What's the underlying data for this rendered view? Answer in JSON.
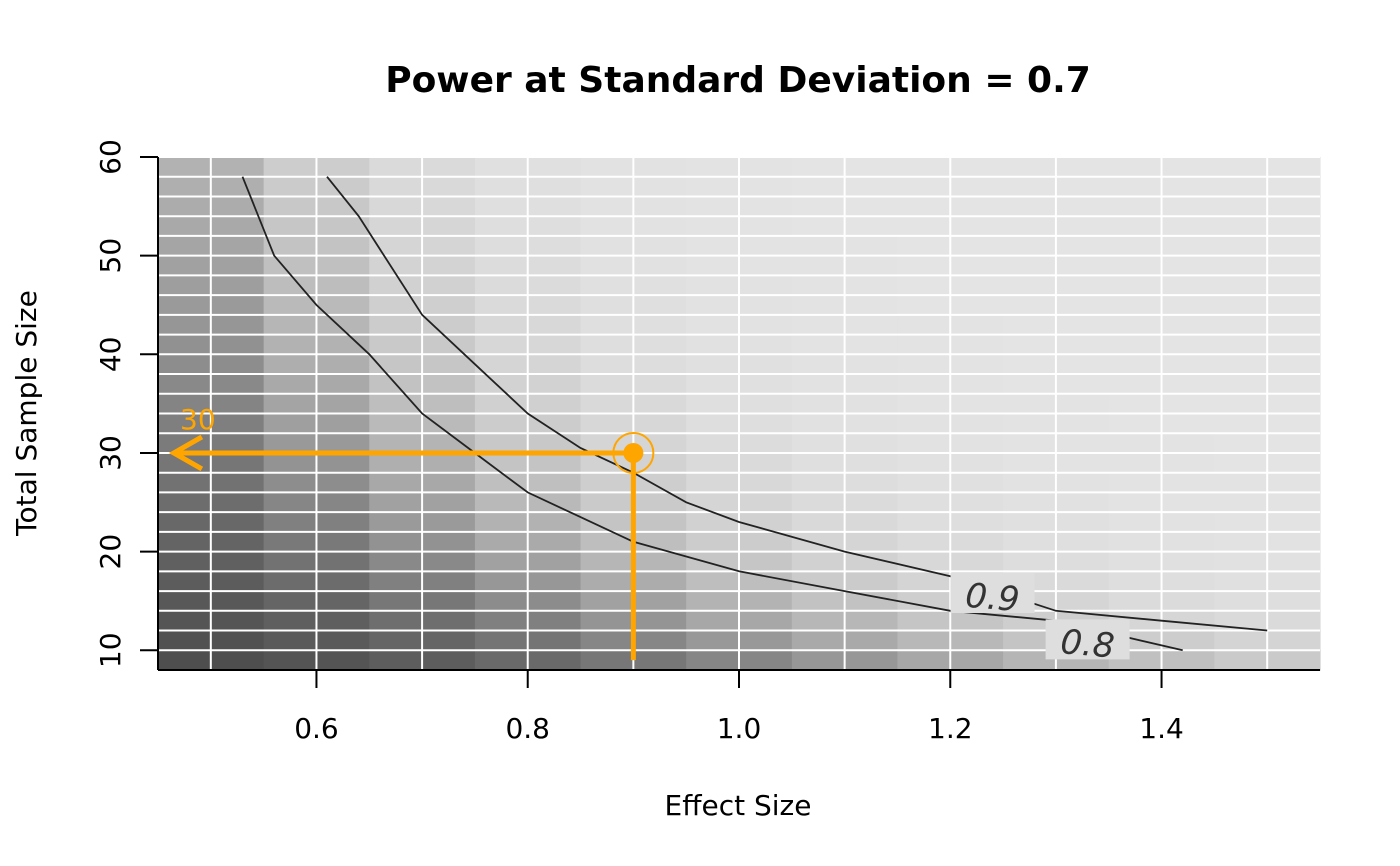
{
  "chart_data": {
    "type": "heatmap",
    "title": "Power at Standard Deviation = 0.7",
    "xlabel": "Effect Size",
    "ylabel": "Total Sample Size",
    "xlim": [
      0.45,
      1.55
    ],
    "ylim": [
      8,
      60
    ],
    "x_ticks": [
      0.6,
      0.8,
      1.0,
      1.2,
      1.4
    ],
    "x_tick_labels": [
      "0.6",
      "0.8",
      "1.0",
      "1.2",
      "1.4"
    ],
    "y_ticks": [
      10,
      20,
      30,
      40,
      50,
      60
    ],
    "y_tick_labels": [
      "10",
      "20",
      "30",
      "40",
      "50",
      "60"
    ],
    "grid": true,
    "grid_x": [
      0.5,
      0.6,
      0.7,
      0.8,
      0.9,
      1.0,
      1.1,
      1.2,
      1.3,
      1.4,
      1.5
    ],
    "grid_y": [
      8,
      10,
      12,
      14,
      16,
      18,
      20,
      22,
      24,
      26,
      28,
      30,
      32,
      34,
      36,
      38,
      40,
      42,
      44,
      46,
      48,
      50,
      52,
      54,
      56,
      58,
      60
    ],
    "heatmap_x_bins": [
      0.45,
      0.55,
      0.65,
      0.75,
      0.85,
      0.95,
      1.05,
      1.15,
      1.25,
      1.35,
      1.45,
      1.55
    ],
    "heatmap_y_bins": [
      8,
      10,
      12,
      14,
      16,
      18,
      20,
      22,
      24,
      26,
      28,
      30,
      32,
      34,
      36,
      38,
      40,
      42,
      44,
      46,
      48,
      50,
      52,
      54,
      56,
      58,
      60
    ],
    "colors": {
      "low": "#444444",
      "high": "#e4e4e4",
      "grid": "#ffffff",
      "contour": "#222222",
      "highlight": "#FFA500"
    },
    "contours": [
      {
        "level": "0.8",
        "points": [
          [
            0.53,
            58
          ],
          [
            0.56,
            50
          ],
          [
            0.6,
            45
          ],
          [
            0.65,
            40
          ],
          [
            0.7,
            34
          ],
          [
            0.75,
            30
          ],
          [
            0.8,
            26
          ],
          [
            0.85,
            23.5
          ],
          [
            0.9,
            21
          ],
          [
            1.0,
            18
          ],
          [
            1.1,
            16
          ],
          [
            1.2,
            14
          ],
          [
            1.3,
            13
          ],
          [
            1.42,
            10
          ]
        ],
        "label_at": [
          1.33,
          10.7
        ]
      },
      {
        "level": "0.9",
        "points": [
          [
            0.61,
            58
          ],
          [
            0.64,
            54
          ],
          [
            0.7,
            44
          ],
          [
            0.75,
            39
          ],
          [
            0.8,
            34
          ],
          [
            0.85,
            30.5
          ],
          [
            0.9,
            28
          ],
          [
            0.95,
            25
          ],
          [
            1.0,
            23
          ],
          [
            1.1,
            20
          ],
          [
            1.2,
            17.5
          ],
          [
            1.3,
            14
          ],
          [
            1.4,
            13
          ],
          [
            1.5,
            12
          ]
        ],
        "label_at": [
          1.24,
          15.4
        ]
      }
    ],
    "highlight": {
      "x": 0.9,
      "y": 30,
      "label": "30"
    }
  }
}
